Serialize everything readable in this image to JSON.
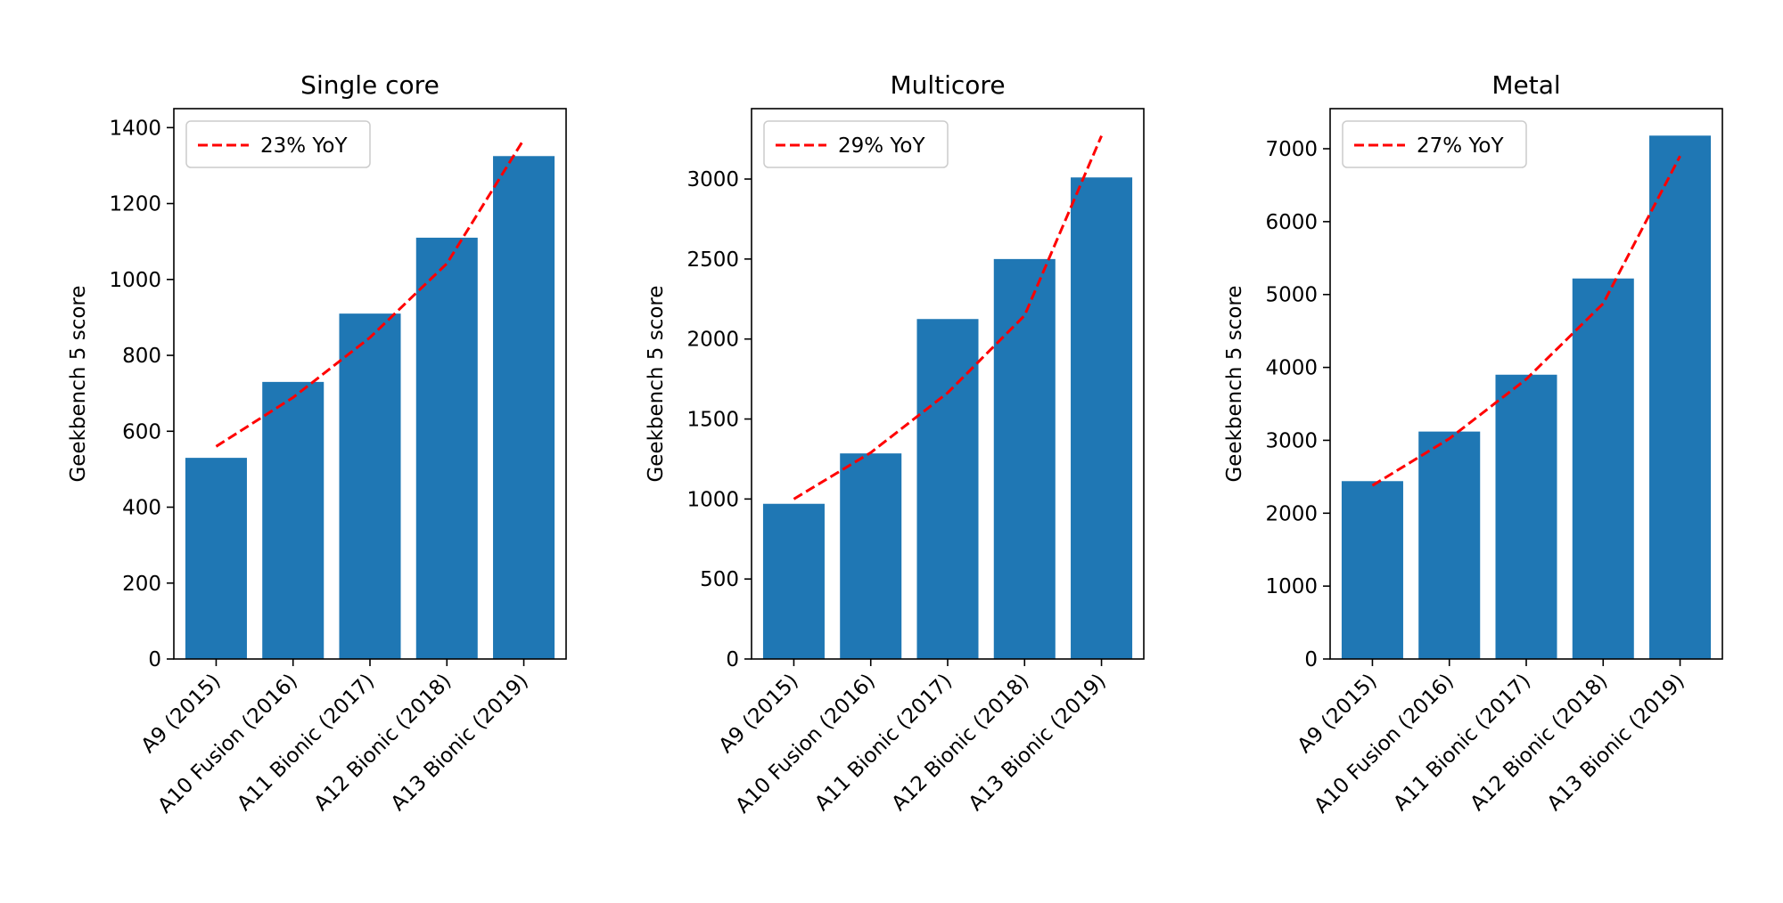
{
  "colors": {
    "bar": "#1f77b4",
    "trend": "#ff0000",
    "axis": "#000000",
    "legend_border": "#cccccc"
  },
  "chart_data": [
    {
      "type": "bar",
      "title": "Single core",
      "ylabel": "Geekbench 5 score",
      "xlabel": "",
      "categories": [
        "A9 (2015)",
        "A10 Fusion (2016)",
        "A11 Bionic (2017)",
        "A12 Bionic (2018)",
        "A13 Bionic (2019)"
      ],
      "values": [
        530,
        730,
        910,
        1110,
        1325
      ],
      "ylim": [
        0,
        1450
      ],
      "yticks": [
        0,
        200,
        400,
        600,
        800,
        1000,
        1200,
        1400
      ],
      "trend": {
        "label": "23% YoY",
        "style": "dashed",
        "values": [
          560,
          689,
          847,
          1042,
          1369
        ]
      },
      "legend_position": "top-left",
      "grid": false
    },
    {
      "type": "bar",
      "title": "Multicore",
      "ylabel": "Geekbench 5 score",
      "xlabel": "",
      "categories": [
        "A9 (2015)",
        "A10 Fusion (2016)",
        "A11 Bionic (2017)",
        "A12 Bionic (2018)",
        "A13 Bionic (2019)"
      ],
      "values": [
        970,
        1285,
        2125,
        2500,
        3010
      ],
      "ylim": [
        0,
        3440
      ],
      "yticks": [
        0,
        500,
        1000,
        1500,
        2000,
        2500,
        3000
      ],
      "trend": {
        "label": "29% YoY",
        "style": "dashed",
        "values": [
          1000,
          1290,
          1664,
          2147,
          3270
        ]
      },
      "legend_position": "top-left",
      "grid": false
    },
    {
      "type": "bar",
      "title": "Metal",
      "ylabel": "Geekbench 5 score",
      "xlabel": "",
      "categories": [
        "A9 (2015)",
        "A10 Fusion (2016)",
        "A11 Bionic (2017)",
        "A12 Bionic (2018)",
        "A13 Bionic (2019)"
      ],
      "values": [
        2440,
        3120,
        3900,
        5220,
        7180
      ],
      "ylim": [
        0,
        7550
      ],
      "yticks": [
        0,
        1000,
        2000,
        3000,
        4000,
        5000,
        6000,
        7000
      ],
      "trend": {
        "label": "27% YoY",
        "style": "dashed",
        "values": [
          2380,
          3023,
          3839,
          4876,
          6900
        ]
      },
      "legend_position": "top-left",
      "grid": false
    }
  ]
}
